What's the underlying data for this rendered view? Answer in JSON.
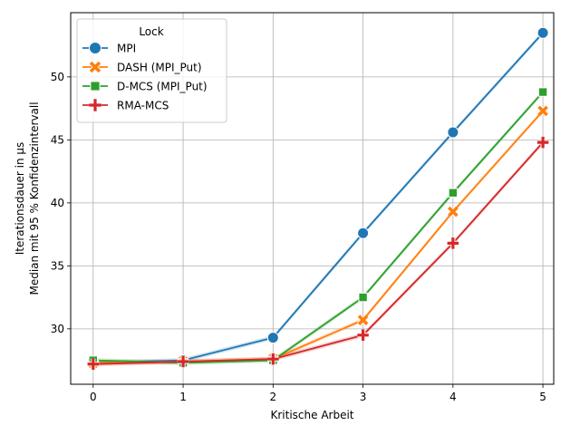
{
  "chart_data": {
    "type": "line",
    "xlabel": "Kritische Arbeit",
    "ylabel_lines": [
      "Iterationsdauer in µs",
      "Median mit 95 % Konfidenzintervall"
    ],
    "x": [
      0,
      1,
      2,
      3,
      4,
      5
    ],
    "xticks": [
      "0",
      "1",
      "2",
      "3",
      "4",
      "5"
    ],
    "yticks": [
      "30",
      "35",
      "40",
      "45",
      "50"
    ],
    "xlim": [
      -0.25,
      5.12
    ],
    "ylim": [
      25.6,
      55.1
    ],
    "grid": true,
    "legend": {
      "title": "Lock",
      "placement": "top-left"
    },
    "series": [
      {
        "name": "MPI",
        "color": "#1f77b4",
        "marker": "circle",
        "values": [
          27.3,
          27.5,
          29.3,
          37.6,
          45.6,
          53.5
        ]
      },
      {
        "name": "DASH (MPI_Put)",
        "color": "#ff7f0e",
        "marker": "x",
        "values": [
          27.3,
          27.4,
          27.6,
          30.7,
          39.3,
          47.3
        ]
      },
      {
        "name": "D-MCS (MPI_Put)",
        "color": "#2ca02c",
        "marker": "square",
        "values": [
          27.5,
          27.3,
          27.5,
          32.5,
          40.8,
          48.8
        ]
      },
      {
        "name": "RMA-MCS",
        "color": "#d62728",
        "marker": "plus",
        "values": [
          27.2,
          27.4,
          27.6,
          29.5,
          36.8,
          44.8
        ]
      }
    ]
  }
}
